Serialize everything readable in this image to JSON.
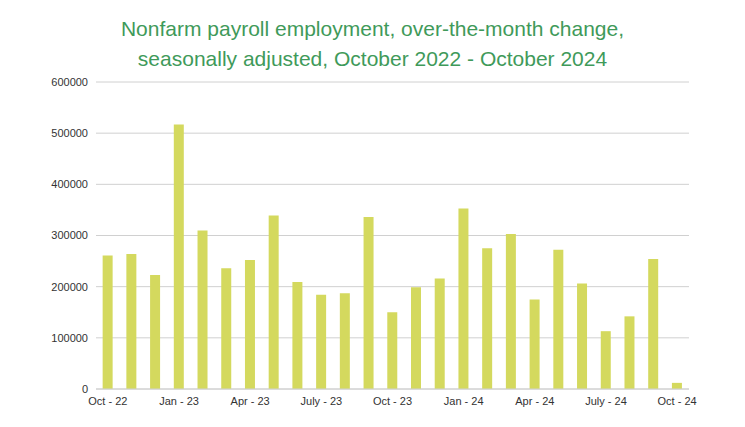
{
  "chart_data": {
    "type": "bar",
    "title": "Nonfarm payroll employment, over-the-month change, seasonally adjusted, October 2022 - October 2024",
    "categories": [
      "Oct - 22",
      null,
      null,
      "Jan - 23",
      null,
      null,
      "Apr - 23",
      null,
      null,
      "July - 23",
      null,
      null,
      "Oct - 23",
      null,
      null,
      "Jan - 24",
      null,
      null,
      "Apr - 24",
      null,
      null,
      "July - 24",
      null,
      null,
      "Oct - 24"
    ],
    "values": [
      261000,
      264000,
      223000,
      517000,
      310000,
      236000,
      252000,
      339000,
      209000,
      184000,
      187000,
      336000,
      150000,
      199000,
      216000,
      353000,
      275000,
      303000,
      175000,
      272000,
      206000,
      113000,
      142000,
      254000,
      12000
    ],
    "color": "#d4d95e",
    "ylim": [
      0,
      600000
    ],
    "yticks": [
      0,
      100000,
      200000,
      300000,
      400000,
      500000,
      600000
    ],
    "grid": true
  }
}
